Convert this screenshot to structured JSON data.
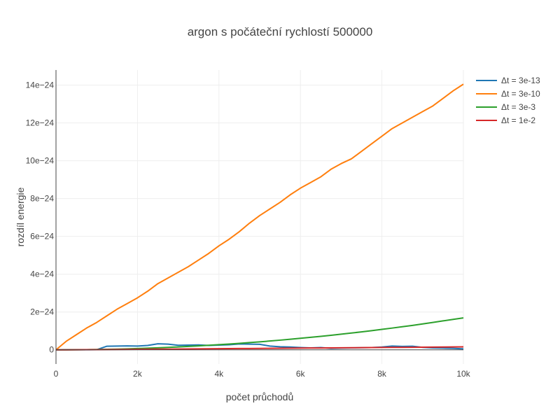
{
  "chart_data": {
    "type": "line",
    "title": "argon s počáteční rychlostí 500000",
    "xlabel": "počet průchodů",
    "ylabel": "rozdíl energie",
    "xlim": [
      0,
      10000
    ],
    "ylim": [
      -7.5e-25,
      1.48e-23
    ],
    "x_ticks": [
      0,
      2000,
      4000,
      6000,
      8000,
      10000
    ],
    "x_tick_labels": [
      "0",
      "2k",
      "4k",
      "6k",
      "8k",
      "10k"
    ],
    "y_ticks": [
      0,
      2e-24,
      4e-24,
      6e-24,
      8e-24,
      1e-23,
      1.2e-23,
      1.4e-23
    ],
    "y_tick_labels": [
      "0",
      "2e−24",
      "4e−24",
      "6e−24",
      "8e−24",
      "10e−24",
      "12e−24",
      "14e−24"
    ],
    "grid": true,
    "legend_position": "top-right",
    "x": [
      0,
      250,
      500,
      750,
      1000,
      1250,
      1500,
      1750,
      2000,
      2250,
      2500,
      2750,
      3000,
      3250,
      3500,
      3750,
      4000,
      4250,
      4500,
      4750,
      5000,
      5250,
      5500,
      5750,
      6000,
      6250,
      6500,
      6750,
      7000,
      7250,
      7500,
      7750,
      8000,
      8250,
      8500,
      8750,
      9000,
      9250,
      9500,
      9750,
      10000
    ],
    "series": [
      {
        "name": "Δt = 3e-13",
        "color": "#1f77b4",
        "values": [
          0,
          3e-27,
          5e-27,
          4e-27,
          8e-27,
          1.9e-25,
          2e-25,
          2.1e-25,
          2e-25,
          2.3e-25,
          3.2e-25,
          3e-25,
          2.4e-25,
          2.5e-25,
          2.6e-25,
          2.3e-25,
          2.5e-25,
          2.7e-25,
          3.1e-25,
          3e-25,
          2.9e-25,
          2e-25,
          1.6e-25,
          1.5e-25,
          1.2e-25,
          1e-25,
          1.2e-25,
          8e-26,
          9e-26,
          1e-25,
          1.1e-25,
          1.2e-25,
          1.5e-25,
          2e-25,
          1.8e-25,
          1.9e-25,
          1.3e-25,
          1e-25,
          9e-26,
          8e-26,
          5e-26
        ]
      },
      {
        "name": "Δt = 3e-10",
        "color": "#ff7f0e",
        "values": [
          0,
          4.5e-25,
          8e-25,
          1.15e-24,
          1.45e-24,
          1.8e-24,
          2.15e-24,
          2.45e-24,
          2.75e-24,
          3.1e-24,
          3.5e-24,
          3.8e-24,
          4.1e-24,
          4.4e-24,
          4.75e-24,
          5.1e-24,
          5.5e-24,
          5.85e-24,
          6.25e-24,
          6.7e-24,
          7.1e-24,
          7.45e-24,
          7.8e-24,
          8.2e-24,
          8.55e-24,
          8.85e-24,
          9.15e-24,
          9.55e-24,
          9.85e-24,
          1.01e-23,
          1.05e-23,
          1.09e-23,
          1.13e-23,
          1.17e-23,
          1.2e-23,
          1.23e-23,
          1.26e-23,
          1.29e-23,
          1.33e-23,
          1.37e-23,
          1.405e-23
        ]
      },
      {
        "name": "Δt = 3e-3",
        "color": "#2ca02c",
        "values": [
          0,
          1e-27,
          4e-27,
          1e-26,
          1.7e-26,
          2.7e-26,
          3.8e-26,
          5.2e-26,
          6.8e-26,
          8.6e-26,
          1.06e-25,
          1.28e-25,
          1.52e-25,
          1.79e-25,
          2.07e-25,
          2.38e-25,
          2.71e-25,
          3.05e-25,
          3.42e-25,
          3.82e-25,
          4.23e-25,
          4.66e-25,
          5.11e-25,
          5.59e-25,
          6.09e-25,
          6.6e-25,
          7.14e-25,
          7.7e-25,
          8.28e-25,
          8.88e-25,
          9.5e-25,
          1.015e-24,
          1.081e-24,
          1.15e-24,
          1.22e-24,
          1.29e-24,
          1.37e-24,
          1.45e-24,
          1.53e-24,
          1.61e-24,
          1.69e-24
        ]
      },
      {
        "name": "Δt = 1e-2",
        "color": "#d62728",
        "values": [
          0,
          2e-27,
          5e-27,
          8e-27,
          1.1e-26,
          1.5e-26,
          1.9e-26,
          2.3e-26,
          2.7e-26,
          3.1e-26,
          3.5e-26,
          3.9e-26,
          4.3e-26,
          4.7e-26,
          5.1e-26,
          5.5e-26,
          5.9e-26,
          6.3e-26,
          6.7e-26,
          7.1e-26,
          7.5e-26,
          7.9e-26,
          8.3e-26,
          8.7e-26,
          9.1e-26,
          9.5e-26,
          9.9e-26,
          1.03e-25,
          1.07e-25,
          1.11e-25,
          1.15e-25,
          1.19e-25,
          1.23e-25,
          1.27e-25,
          1.31e-25,
          1.35e-25,
          1.39e-25,
          1.43e-25,
          1.47e-25,
          1.51e-25,
          1.55e-25
        ]
      }
    ]
  }
}
